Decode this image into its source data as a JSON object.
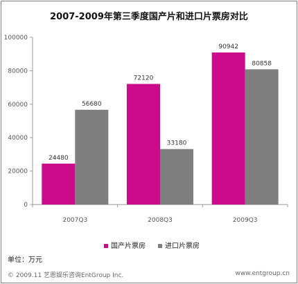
{
  "title": "2007-2009年第三季度国产片和进口片票房对比",
  "unit_label": "单位：万元",
  "footer": {
    "left": "© 2009.11  艺恩娱乐咨询EntGroup Inc.",
    "right": "www.entgroup.cn"
  },
  "colors": {
    "domestic": "#cc0b8a",
    "imported": "#7f7f7f"
  },
  "chart_data": {
    "type": "bar",
    "title": "2007-2009年第三季度国产片和进口片票房对比",
    "categories": [
      "2007Q3",
      "2008Q3",
      "2009Q3"
    ],
    "series": [
      {
        "name": "国产片票房",
        "values": [
          24480,
          72120,
          90942
        ]
      },
      {
        "name": "进口片票房",
        "values": [
          56680,
          33180,
          80858
        ]
      }
    ],
    "ylim": [
      0,
      100000
    ],
    "yticks": [
      0,
      20000,
      40000,
      60000,
      80000,
      100000
    ],
    "grid": false,
    "legend": "bottom",
    "data_labels": true
  }
}
